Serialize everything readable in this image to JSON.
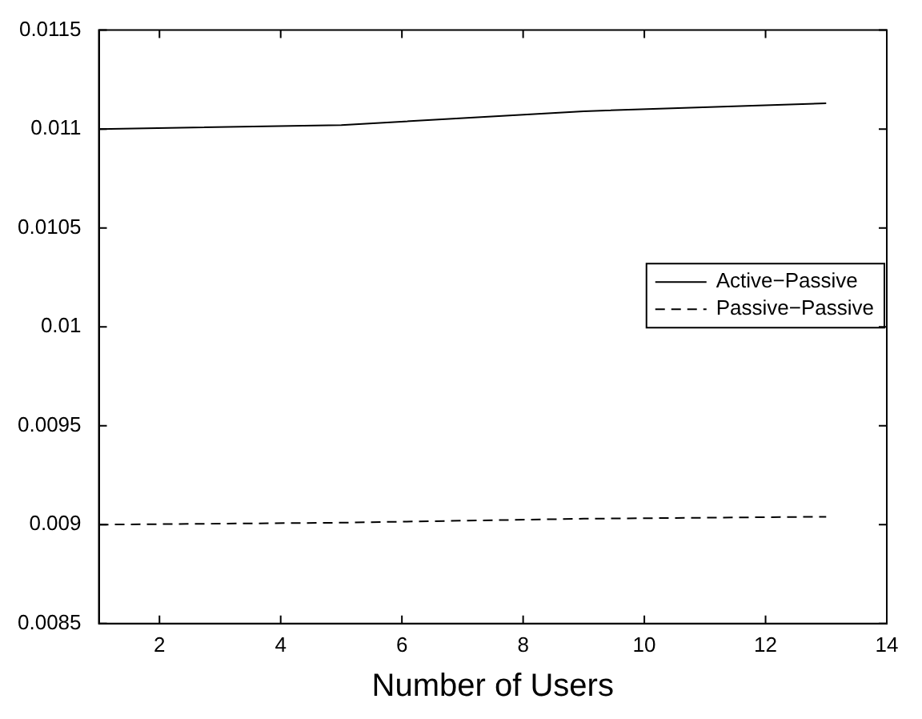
{
  "chart_data": {
    "type": "line",
    "xlabel": "Number of Users",
    "x": [
      1,
      5,
      9,
      13
    ],
    "series": [
      {
        "name": "Active−Passive",
        "color": "#000000",
        "values": [
          0.011,
          0.01102,
          0.01109,
          0.01113
        ],
        "line_style": "solid"
      },
      {
        "name": "Passive−Passive",
        "color": "#000000",
        "values": [
          0.009,
          0.00901,
          0.00903,
          0.00904
        ],
        "line_style": "dashed"
      }
    ],
    "xlim": [
      1,
      14
    ],
    "xticks": [
      2,
      4,
      6,
      8,
      10,
      12,
      14
    ],
    "ylim": [
      0.0085,
      0.0115
    ],
    "yticks": [
      0.0085,
      0.009,
      0.0095,
      0.01,
      0.0105,
      0.011,
      0.0115
    ],
    "grid": false,
    "legend": "right",
    "marker": "none"
  }
}
